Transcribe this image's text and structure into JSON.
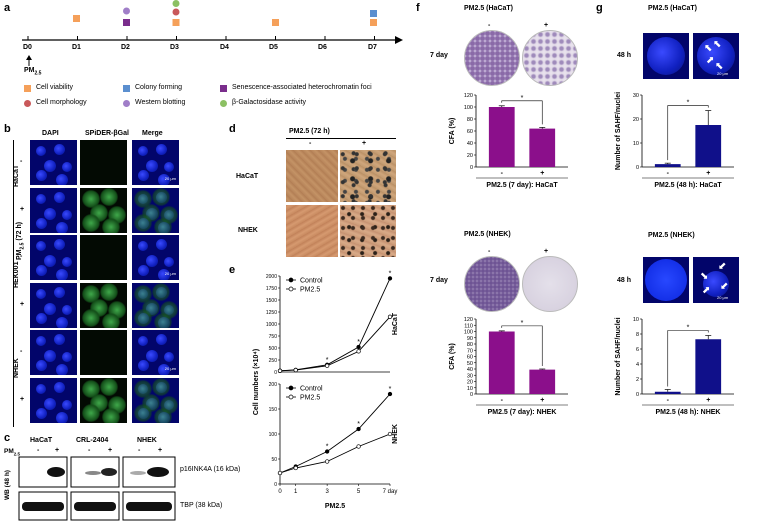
{
  "panel_labels": {
    "a": "a",
    "b": "b",
    "c": "c",
    "d": "d",
    "e": "e",
    "f": "f",
    "g": "g"
  },
  "timeline": {
    "days": [
      "D0",
      "D1",
      "D2",
      "D3",
      "D4",
      "D5",
      "D6",
      "D7"
    ],
    "exposure_label": "PM",
    "exposure_sub": "2.5",
    "legend": [
      {
        "label": "Cell viability",
        "color": "#f5a05a",
        "shape": "square"
      },
      {
        "label": "Colony forming",
        "color": "#5b8fcf",
        "shape": "square"
      },
      {
        "label": "Senescence-associated heterochromatin foci",
        "color": "#7a2d8c",
        "shape": "square"
      },
      {
        "label": "Cell morphology",
        "color": "#c9585a",
        "shape": "circle"
      },
      {
        "label": "Western blotting",
        "color": "#a07ec8",
        "shape": "circle"
      },
      {
        "label": "β-Galactosidase activity",
        "color": "#8cc063",
        "shape": "circle"
      }
    ]
  },
  "panel_b": {
    "columns": [
      "DAPI",
      "SPiDER-βGal",
      "Merge"
    ],
    "side_label": "PM2.5 (72 h)",
    "groups": [
      "HaCaT",
      "HEK001",
      "NHEK"
    ],
    "rows": [
      "-",
      "+",
      "-",
      "+",
      "-",
      "+"
    ],
    "scale": "20 μm"
  },
  "panel_c": {
    "groups": [
      "HaCaT",
      "CRL-2404",
      "NHEK"
    ],
    "pm_label": "PM2.5",
    "signs": [
      "-",
      "+"
    ],
    "side_label": "WB (48 h)",
    "bands": [
      "p16INK4A (16 kDa)",
      "TBP (38 kDa)"
    ]
  },
  "panel_d": {
    "title": "PM2.5 (72 h)",
    "signs": [
      "-",
      "+"
    ],
    "rows": [
      "HaCaT",
      "NHEK"
    ]
  },
  "panel_f": {
    "top": {
      "title": "PM2.5 (HaCaT)",
      "time": "7 day",
      "signs": [
        "-",
        "+"
      ],
      "xlabel": "PM2.5 (7 day): HaCaT"
    },
    "bottom": {
      "title": "PM2.5 (NHEK)",
      "time": "7 day",
      "signs": [
        "-",
        "+"
      ],
      "xlabel": "PM2.5 (7 day): NHEK"
    }
  },
  "panel_g": {
    "top": {
      "title": "PM2.5 (HaCaT)",
      "time": "48 h",
      "scale": "20 μm",
      "xlabel": "PM2.5 (48 h): HaCaT"
    },
    "bottom": {
      "title": "PM2.5 (NHEK)",
      "time": "48 h",
      "scale": "20 μm",
      "xlabel": "PM2.5 (48 h): NHEK"
    }
  },
  "chart_data": [
    {
      "id": "e-hacat",
      "type": "line",
      "title": "HaCaT",
      "x": [
        0,
        1,
        3,
        5,
        7
      ],
      "xticks": [
        "0",
        "1",
        "3",
        "5",
        "7 day"
      ],
      "xlabel": "PM2.5",
      "ylabel": "Cell numbers (×10⁴)",
      "ylim": [
        0,
        2000
      ],
      "yticks": [
        0,
        250,
        500,
        750,
        1000,
        1250,
        1500,
        1750,
        2000
      ],
      "series": [
        {
          "name": "Control",
          "marker": "filled",
          "values": [
            25,
            45,
            150,
            520,
            1950
          ]
        },
        {
          "name": "PM2.5",
          "marker": "open",
          "values": [
            25,
            40,
            130,
            430,
            1150
          ]
        }
      ],
      "significance": [
        "",
        "",
        "*",
        "*",
        "*"
      ],
      "legend_location": "top-left"
    },
    {
      "id": "e-nhek",
      "type": "line",
      "title": "NHEK",
      "x": [
        0,
        1,
        3,
        5,
        7
      ],
      "xticks": [
        "0",
        "1",
        "3",
        "5",
        "7 day"
      ],
      "xlabel": "PM2.5",
      "ylabel": "Cell numbers (×10⁴)",
      "ylim": [
        0,
        200
      ],
      "yticks": [
        0,
        50,
        100,
        150,
        200
      ],
      "series": [
        {
          "name": "Control",
          "marker": "filled",
          "values": [
            22,
            35,
            65,
            110,
            180
          ]
        },
        {
          "name": "PM2.5",
          "marker": "open",
          "values": [
            22,
            32,
            45,
            75,
            100
          ]
        }
      ],
      "significance": [
        "",
        "",
        "*",
        "*",
        "*"
      ],
      "legend_location": "top-left"
    },
    {
      "id": "f-hacat",
      "type": "bar",
      "categories": [
        "-",
        "+"
      ],
      "values": [
        100,
        64
      ],
      "errors": [
        2,
        2
      ],
      "ylabel": "CFA (%)",
      "ylim": [
        0,
        120
      ],
      "yticks": [
        0,
        20,
        40,
        60,
        80,
        100,
        120
      ],
      "xlabel": "PM2.5 (7 day): HaCaT",
      "significance": "*",
      "color": "#8b0f8b"
    },
    {
      "id": "f-nhek",
      "type": "bar",
      "categories": [
        "-",
        "+"
      ],
      "values": [
        100,
        39
      ],
      "errors": [
        1,
        1
      ],
      "ylabel": "CFA (%)",
      "ylim": [
        0,
        120
      ],
      "yticks": [
        0,
        10,
        20,
        30,
        40,
        50,
        60,
        70,
        80,
        90,
        100,
        110,
        120
      ],
      "xlabel": "PM2.5 (7 day): NHEK",
      "significance": "*",
      "color": "#8b0f8b"
    },
    {
      "id": "g-hacat",
      "type": "bar",
      "categories": [
        "-",
        "+"
      ],
      "values": [
        1.2,
        17.5
      ],
      "errors": [
        0.4,
        6
      ],
      "ylabel": "Number of SAHF/nuclei",
      "ylim": [
        0,
        30
      ],
      "yticks": [
        0,
        10,
        20,
        30
      ],
      "xlabel": "PM2.5 (48 h): HaCaT",
      "significance": "*",
      "color": "#10108a"
    },
    {
      "id": "g-nhek",
      "type": "bar",
      "categories": [
        "-",
        "+"
      ],
      "values": [
        0.3,
        7.3
      ],
      "errors": [
        0.3,
        0.5
      ],
      "ylabel": "Number of SAHF/nuclei",
      "ylim": [
        0,
        10
      ],
      "yticks": [
        0,
        2,
        4,
        6,
        8,
        10
      ],
      "xlabel": "PM2.5 (48 h): NHEK",
      "significance": "*",
      "color": "#10108a"
    }
  ]
}
